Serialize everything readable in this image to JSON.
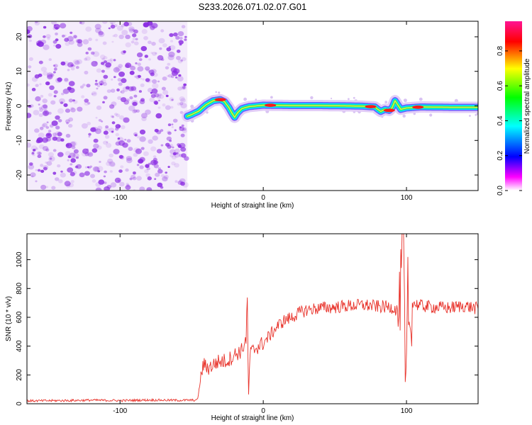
{
  "title": "S233.2026.071.02.07.G01",
  "chart_data": [
    {
      "type": "heatmap",
      "name": "spectrogram",
      "xlabel": "Height of straight line (km)",
      "ylabel": "Frequency (Hz)",
      "xlim": [
        -165,
        150
      ],
      "ylim": [
        -24.5,
        24.5
      ],
      "xticks": [
        -100,
        0,
        100
      ],
      "yticks": [
        -20,
        -10,
        0,
        10,
        20
      ],
      "noise_region_x": [
        -165,
        -53
      ],
      "noise_color": "#8a2be2",
      "ridge": {
        "x": [
          -53,
          -50,
          -45,
          -40,
          -35,
          -30,
          -27,
          -24,
          -22,
          -20,
          -18,
          -15,
          -10,
          0,
          20,
          40,
          60,
          70,
          78,
          80,
          82,
          85,
          88,
          90,
          92,
          96,
          100,
          110,
          130,
          150
        ],
        "y": [
          -3,
          -2.5,
          -1.5,
          0.3,
          1.5,
          1.8,
          1.2,
          -0.5,
          -2,
          -3.3,
          -2,
          -0.8,
          -0.2,
          0.2,
          0.1,
          0.1,
          0,
          -0.1,
          -0.3,
          -1,
          -1.6,
          -1,
          -1.3,
          -0.5,
          1.5,
          -1,
          -0.6,
          -0.3,
          -0.4,
          -0.4
        ]
      },
      "hot_spots_x": [
        -30,
        5,
        75,
        88,
        108
      ],
      "colorbar": {
        "label": "Normalized spectral amplitude",
        "range": [
          0,
          0.97
        ],
        "ticks": [
          0.0,
          0.2,
          0.4,
          0.6,
          0.8
        ],
        "tick_labels": [
          "0.0",
          "0.2",
          "0.4",
          "0.6",
          "0.8"
        ],
        "colors": [
          "#ffffff",
          "#ff00ff",
          "#0000ff",
          "#00ffff",
          "#00ff00",
          "#ffff00",
          "#ff0000",
          "#ff1493"
        ]
      }
    },
    {
      "type": "line",
      "name": "snr",
      "xlabel": "Height of straight line (km)",
      "ylabel": "SNR (10 * v/v)",
      "xlim": [
        -165,
        150
      ],
      "ylim": [
        0,
        1180
      ],
      "xticks": [
        -100,
        0,
        100
      ],
      "yticks": [
        0,
        200,
        400,
        600,
        800,
        1000
      ],
      "color": "#e8322a",
      "series": [
        {
          "name": "SNR",
          "x": [
            -165,
            -140,
            -120,
            -100,
            -80,
            -60,
            -46,
            -44,
            -42,
            -38,
            -32,
            -25,
            -20,
            -15,
            -12,
            -11,
            -10.5,
            -10,
            -9.5,
            -9,
            -8,
            -5,
            0,
            5,
            10,
            15,
            20,
            25,
            30,
            40,
            50,
            60,
            70,
            80,
            90,
            95,
            97,
            98,
            99,
            100,
            101,
            102,
            104,
            110,
            120,
            130,
            140,
            150
          ],
          "y": [
            20,
            22,
            25,
            22,
            26,
            24,
            25,
            150,
            270,
            250,
            290,
            300,
            340,
            370,
            450,
            750,
            100,
            60,
            330,
            350,
            360,
            390,
            420,
            480,
            540,
            580,
            600,
            630,
            650,
            665,
            670,
            680,
            685,
            675,
            670,
            640,
            1000,
            1180,
            150,
            70,
            900,
            450,
            700,
            680,
            670,
            665,
            680,
            660
          ]
        }
      ]
    }
  ]
}
